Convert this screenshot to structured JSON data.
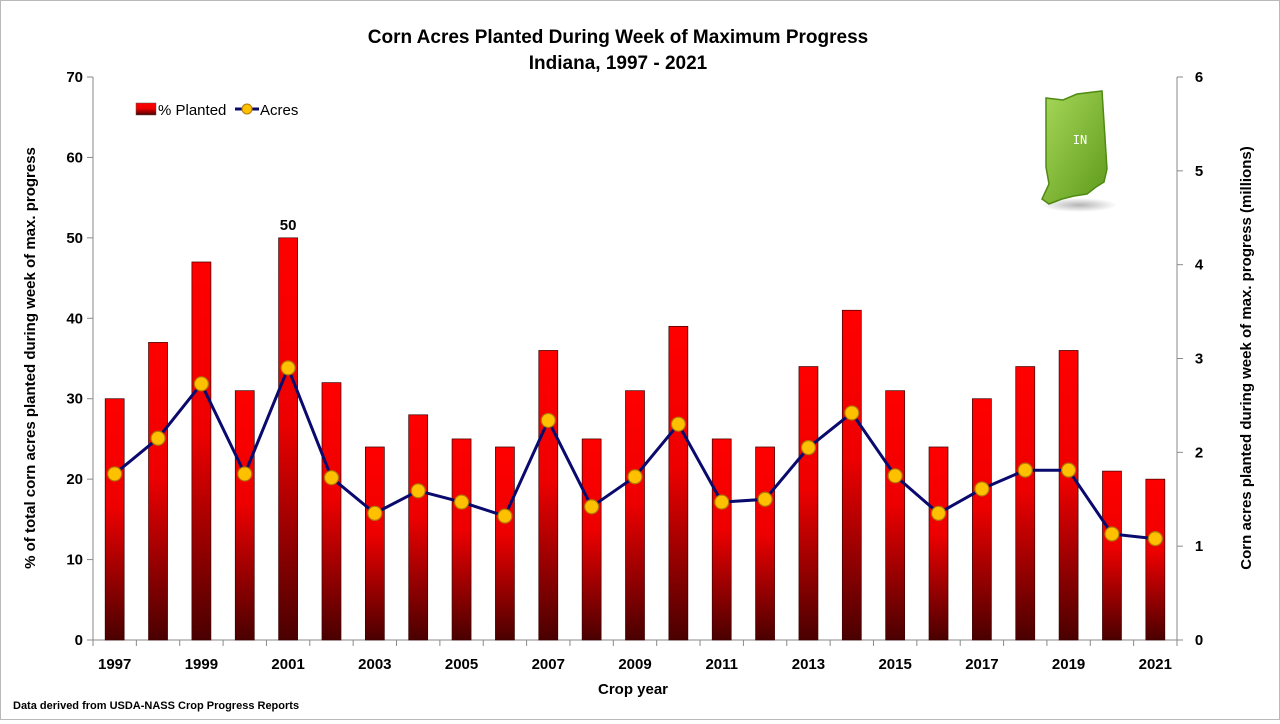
{
  "chart_data": {
    "type": "bar",
    "title": "Corn Acres Planted During Week of Maximum Progress",
    "subtitle": "Indiana, 1997 - 2021",
    "xlabel": "Crop year",
    "ylabel": "% of total corn acres planted during week of max. progress",
    "y2label": "Corn acres planted during week of max. progress (millions)",
    "ylim": [
      0,
      70
    ],
    "y2lim": [
      0,
      6
    ],
    "yticks": [
      "0",
      "10",
      "20",
      "30",
      "40",
      "50",
      "60",
      "70"
    ],
    "y2ticks": [
      "0",
      "1",
      "2",
      "3",
      "4",
      "5",
      "6"
    ],
    "categories": [
      "1997",
      "1998",
      "1999",
      "2000",
      "2001",
      "2002",
      "2003",
      "2004",
      "2005",
      "2006",
      "2007",
      "2008",
      "2009",
      "2010",
      "2011",
      "2012",
      "2013",
      "2014",
      "2015",
      "2016",
      "2017",
      "2018",
      "2019",
      "2020",
      "2021"
    ],
    "xtick_labels": [
      "1997",
      "",
      "1999",
      "",
      "2001",
      "",
      "2003",
      "",
      "2005",
      "",
      "2007",
      "",
      "2009",
      "",
      "2011",
      "",
      "2013",
      "",
      "2015",
      "",
      "2017",
      "",
      "2019",
      "",
      "2021"
    ],
    "series": [
      {
        "name": "% Planted",
        "type": "bar",
        "axis": "left",
        "color": "#ff0000",
        "values": [
          30,
          37,
          47,
          31,
          50,
          32,
          24,
          28,
          25,
          24,
          36,
          25,
          31,
          39,
          25,
          24,
          34,
          41,
          31,
          24,
          30,
          34,
          36,
          21,
          20
        ]
      },
      {
        "name": "Acres",
        "type": "line",
        "axis": "right",
        "color": "#0a0a6e",
        "marker_color": "#ffc000",
        "values": [
          1.77,
          2.15,
          2.73,
          1.77,
          2.9,
          1.73,
          1.35,
          1.59,
          1.47,
          1.32,
          2.34,
          1.42,
          1.74,
          2.3,
          1.47,
          1.5,
          2.05,
          2.42,
          1.75,
          1.35,
          1.61,
          1.81,
          1.81,
          1.13,
          1.08
        ]
      }
    ],
    "data_labels": [
      {
        "category": "2001",
        "text": "50"
      }
    ],
    "legend_position": "top-left",
    "grid": false
  },
  "badge": {
    "state_abbr": "IN",
    "icon": "indiana-map-icon",
    "color": "#7dbb2a"
  },
  "footnote": "Data derived from USDA-NASS Crop Progress Reports"
}
